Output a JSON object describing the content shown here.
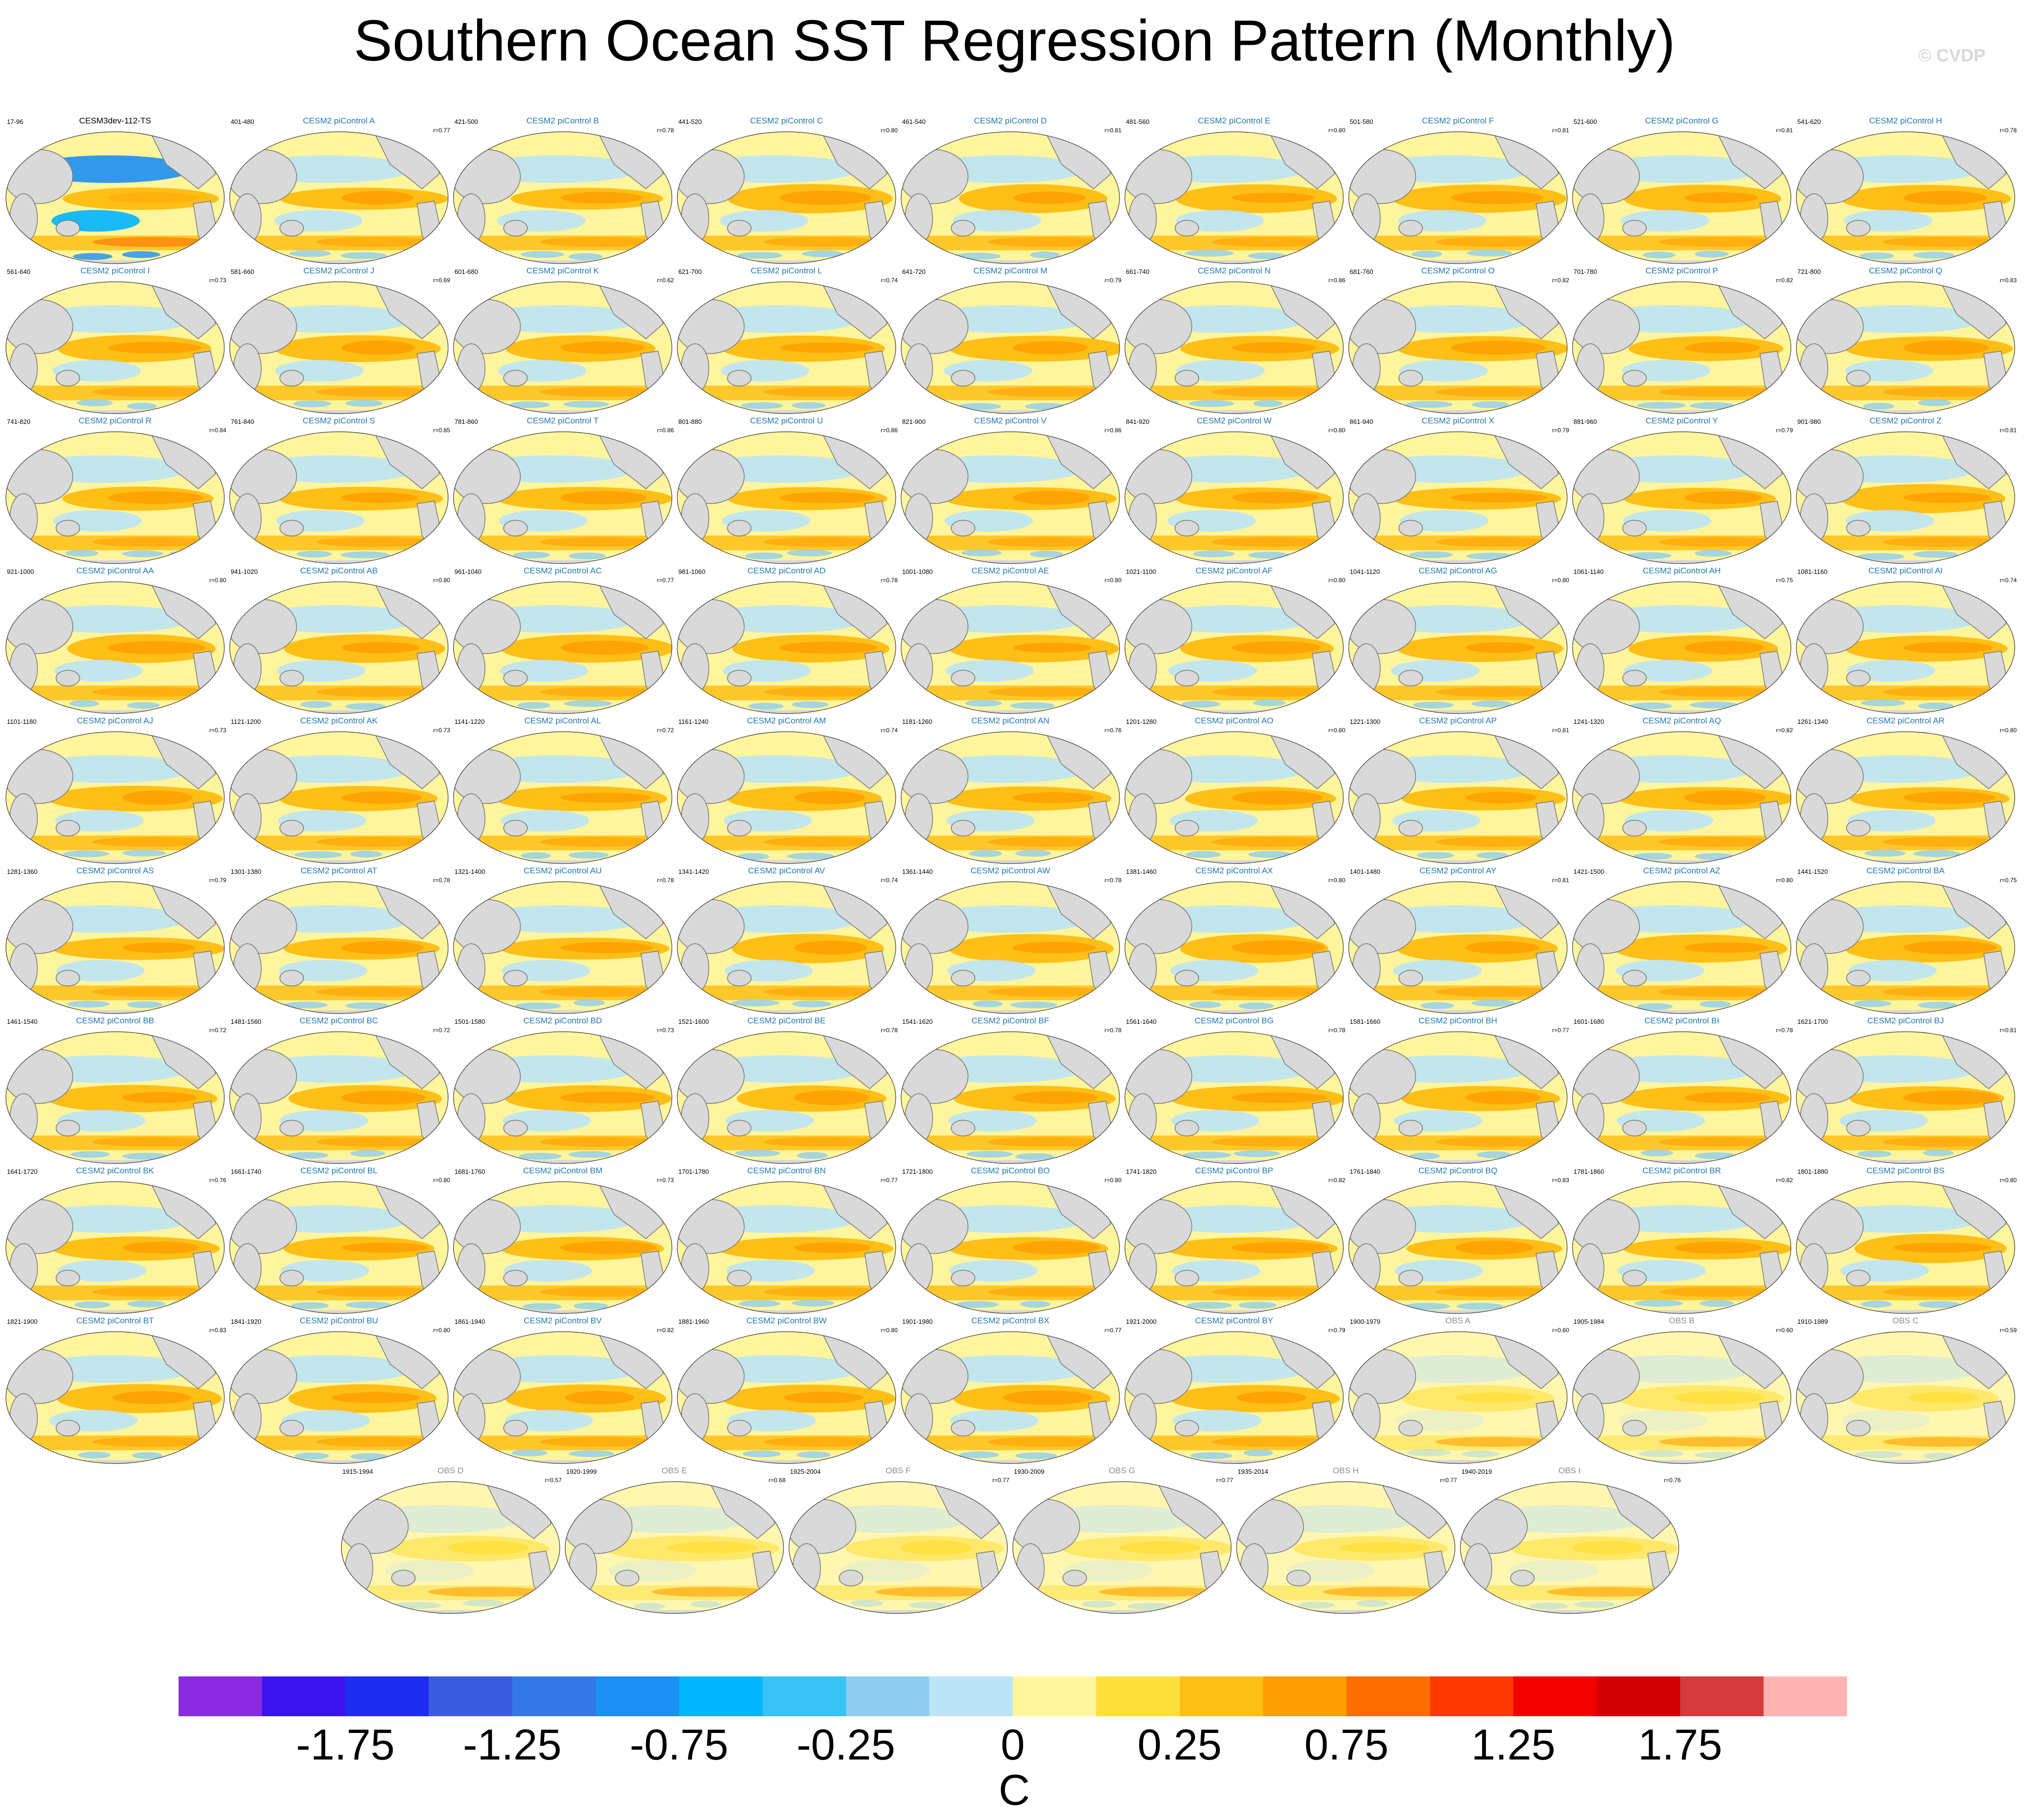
{
  "title": "Southern Ocean SST Regression Pattern (Monthly)",
  "copyright": "© CVDP",
  "colors": {
    "model_title": "#1f78b4",
    "obs_title": "#8e8e8e",
    "land": "#d9d9d9",
    "palette": [
      "#8a2be2",
      "#3a15f2",
      "#1e2df0",
      "#3c5ce0",
      "#3478e8",
      "#1c8ff3",
      "#00b4ff",
      "#38c3f7",
      "#8ecdee",
      "#bde4f6",
      "#fff59d",
      "#ffdf3a",
      "#ffbf16",
      "#ff9e00",
      "#ff6e00",
      "#ff3a00",
      "#f40000",
      "#d40000",
      "#d63b3b",
      "#ffb3b3"
    ]
  },
  "chart_data": {
    "type": "contour-map-panels",
    "title": "Southern Ocean SST Regression Pattern (Monthly)",
    "units": "C",
    "colorbar": {
      "levels": [
        -2.25,
        -2.0,
        -1.75,
        -1.5,
        -1.25,
        -1.0,
        -0.75,
        -0.5,
        -0.25,
        -0.1,
        0,
        0.1,
        0.25,
        0.5,
        0.75,
        1.0,
        1.25,
        1.5,
        1.75,
        2.0,
        2.25
      ],
      "tick_labels": [
        "-1.75",
        "-1.25",
        "-0.75",
        "-0.25",
        "0",
        "0.25",
        "0.75",
        "1.25",
        "1.75"
      ],
      "tick_values": [
        -1.75,
        -1.25,
        -0.75,
        -0.25,
        0,
        0.25,
        0.75,
        1.25,
        1.75
      ]
    },
    "panels": [
      {
        "title": "CESM3dev-112-TS",
        "years": "17-96",
        "r": "",
        "kind": "ref"
      },
      {
        "title": "CESM2 piControl A",
        "years": "401-480",
        "r": "r=0.77",
        "kind": "model"
      },
      {
        "title": "CESM2 piControl B",
        "years": "421-500",
        "r": "r=0.78",
        "kind": "model"
      },
      {
        "title": "CESM2 piControl C",
        "years": "441-520",
        "r": "r=0.80",
        "kind": "model"
      },
      {
        "title": "CESM2 piControl D",
        "years": "461-540",
        "r": "r=0.81",
        "kind": "model"
      },
      {
        "title": "CESM2 piControl E",
        "years": "481-560",
        "r": "r=0.80",
        "kind": "model"
      },
      {
        "title": "CESM2 piControl F",
        "years": "501-580",
        "r": "r=0.81",
        "kind": "model"
      },
      {
        "title": "CESM2 piControl G",
        "years": "521-600",
        "r": "r=0.81",
        "kind": "model"
      },
      {
        "title": "CESM2 piControl H",
        "years": "541-620",
        "r": "r=0.78",
        "kind": "model"
      },
      {
        "title": "CESM2 piControl I",
        "years": "561-640",
        "r": "r=0.73",
        "kind": "model"
      },
      {
        "title": "CESM2 piControl J",
        "years": "581-660",
        "r": "r=0.69",
        "kind": "model"
      },
      {
        "title": "CESM2 piControl K",
        "years": "601-680",
        "r": "r=0.62",
        "kind": "model"
      },
      {
        "title": "CESM2 piControl L",
        "years": "621-700",
        "r": "r=0.74",
        "kind": "model"
      },
      {
        "title": "CESM2 piControl M",
        "years": "641-720",
        "r": "r=0.79",
        "kind": "model"
      },
      {
        "title": "CESM2 piControl N",
        "years": "661-740",
        "r": "r=0.86",
        "kind": "model"
      },
      {
        "title": "CESM2 piControl O",
        "years": "681-760",
        "r": "r=0.82",
        "kind": "model"
      },
      {
        "title": "CESM2 piControl P",
        "years": "701-780",
        "r": "r=0.82",
        "kind": "model"
      },
      {
        "title": "CESM2 piControl Q",
        "years": "721-800",
        "r": "r=0.83",
        "kind": "model"
      },
      {
        "title": "CESM2 piControl R",
        "years": "741-820",
        "r": "r=0.84",
        "kind": "model"
      },
      {
        "title": "CESM2 piControl S",
        "years": "761-840",
        "r": "r=0.85",
        "kind": "model"
      },
      {
        "title": "CESM2 piControl T",
        "years": "781-860",
        "r": "r=0.86",
        "kind": "model"
      },
      {
        "title": "CESM2 piControl U",
        "years": "801-880",
        "r": "r=0.86",
        "kind": "model"
      },
      {
        "title": "CESM2 piControl V",
        "years": "821-900",
        "r": "r=0.86",
        "kind": "model"
      },
      {
        "title": "CESM2 piControl W",
        "years": "841-920",
        "r": "r=0.80",
        "kind": "model"
      },
      {
        "title": "CESM2 piControl X",
        "years": "861-940",
        "r": "r=0.79",
        "kind": "model"
      },
      {
        "title": "CESM2 piControl Y",
        "years": "881-960",
        "r": "r=0.79",
        "kind": "model"
      },
      {
        "title": "CESM2 piControl Z",
        "years": "901-980",
        "r": "r=0.81",
        "kind": "model"
      },
      {
        "title": "CESM2 piControl AA",
        "years": "921-1000",
        "r": "r=0.80",
        "kind": "model"
      },
      {
        "title": "CESM2 piControl AB",
        "years": "941-1020",
        "r": "r=0.80",
        "kind": "model"
      },
      {
        "title": "CESM2 piControl AC",
        "years": "961-1040",
        "r": "r=0.77",
        "kind": "model"
      },
      {
        "title": "CESM2 piControl AD",
        "years": "981-1060",
        "r": "r=0.78",
        "kind": "model"
      },
      {
        "title": "CESM2 piControl AE",
        "years": "1001-1080",
        "r": "r=0.80",
        "kind": "model"
      },
      {
        "title": "CESM2 piControl AF",
        "years": "1021-1100",
        "r": "r=0.80",
        "kind": "model"
      },
      {
        "title": "CESM2 piControl AG",
        "years": "1041-1120",
        "r": "r=0.80",
        "kind": "model"
      },
      {
        "title": "CESM2 piControl AH",
        "years": "1061-1140",
        "r": "r=0.75",
        "kind": "model"
      },
      {
        "title": "CESM2 piControl AI",
        "years": "1081-1160",
        "r": "r=0.74",
        "kind": "model"
      },
      {
        "title": "CESM2 piControl AJ",
        "years": "1101-1180",
        "r": "r=0.73",
        "kind": "model"
      },
      {
        "title": "CESM2 piControl AK",
        "years": "1121-1200",
        "r": "r=0.73",
        "kind": "model"
      },
      {
        "title": "CESM2 piControl AL",
        "years": "1141-1220",
        "r": "r=0.72",
        "kind": "model"
      },
      {
        "title": "CESM2 piControl AM",
        "years": "1161-1240",
        "r": "r=0.74",
        "kind": "model"
      },
      {
        "title": "CESM2 piControl AN",
        "years": "1181-1260",
        "r": "r=0.76",
        "kind": "model"
      },
      {
        "title": "CESM2 piControl AO",
        "years": "1201-1280",
        "r": "r=0.80",
        "kind": "model"
      },
      {
        "title": "CESM2 piControl AP",
        "years": "1221-1300",
        "r": "r=0.81",
        "kind": "model"
      },
      {
        "title": "CESM2 piControl AQ",
        "years": "1241-1320",
        "r": "r=0.82",
        "kind": "model"
      },
      {
        "title": "CESM2 piControl AR",
        "years": "1261-1340",
        "r": "r=0.80",
        "kind": "model"
      },
      {
        "title": "CESM2 piControl AS",
        "years": "1281-1360",
        "r": "r=0.79",
        "kind": "model"
      },
      {
        "title": "CESM2 piControl AT",
        "years": "1301-1380",
        "r": "r=0.78",
        "kind": "model"
      },
      {
        "title": "CESM2 piControl AU",
        "years": "1321-1400",
        "r": "r=0.78",
        "kind": "model"
      },
      {
        "title": "CESM2 piControl AV",
        "years": "1341-1420",
        "r": "r=0.74",
        "kind": "model"
      },
      {
        "title": "CESM2 piControl AW",
        "years": "1361-1440",
        "r": "r=0.78",
        "kind": "model"
      },
      {
        "title": "CESM2 piControl AX",
        "years": "1381-1460",
        "r": "r=0.80",
        "kind": "model"
      },
      {
        "title": "CESM2 piControl AY",
        "years": "1401-1480",
        "r": "r=0.81",
        "kind": "model"
      },
      {
        "title": "CESM2 piControl AZ",
        "years": "1421-1500",
        "r": "r=0.80",
        "kind": "model"
      },
      {
        "title": "CESM2 piControl BA",
        "years": "1441-1520",
        "r": "r=0.75",
        "kind": "model"
      },
      {
        "title": "CESM2 piControl BB",
        "years": "1461-1540",
        "r": "r=0.72",
        "kind": "model"
      },
      {
        "title": "CESM2 piControl BC",
        "years": "1481-1560",
        "r": "r=0.72",
        "kind": "model"
      },
      {
        "title": "CESM2 piControl BD",
        "years": "1501-1580",
        "r": "r=0.73",
        "kind": "model"
      },
      {
        "title": "CESM2 piControl BE",
        "years": "1521-1600",
        "r": "r=0.78",
        "kind": "model"
      },
      {
        "title": "CESM2 piControl BF",
        "years": "1541-1620",
        "r": "r=0.78",
        "kind": "model"
      },
      {
        "title": "CESM2 piControl BG",
        "years": "1561-1640",
        "r": "r=0.78",
        "kind": "model"
      },
      {
        "title": "CESM2 piControl BH",
        "years": "1581-1660",
        "r": "r=0.77",
        "kind": "model"
      },
      {
        "title": "CESM2 piControl BI",
        "years": "1601-1680",
        "r": "r=0.78",
        "kind": "model"
      },
      {
        "title": "CESM2 piControl BJ",
        "years": "1621-1700",
        "r": "r=0.81",
        "kind": "model"
      },
      {
        "title": "CESM2 piControl BK",
        "years": "1641-1720",
        "r": "r=0.76",
        "kind": "model"
      },
      {
        "title": "CESM2 piControl BL",
        "years": "1661-1740",
        "r": "r=0.80",
        "kind": "model"
      },
      {
        "title": "CESM2 piControl BM",
        "years": "1681-1760",
        "r": "r=0.73",
        "kind": "model"
      },
      {
        "title": "CESM2 piControl BN",
        "years": "1701-1780",
        "r": "r=0.77",
        "kind": "model"
      },
      {
        "title": "CESM2 piControl BO",
        "years": "1721-1800",
        "r": "r=0.80",
        "kind": "model"
      },
      {
        "title": "CESM2 piControl BP",
        "years": "1741-1820",
        "r": "r=0.82",
        "kind": "model"
      },
      {
        "title": "CESM2 piControl BQ",
        "years": "1761-1840",
        "r": "r=0.83",
        "kind": "model"
      },
      {
        "title": "CESM2 piControl BR",
        "years": "1781-1860",
        "r": "r=0.82",
        "kind": "model"
      },
      {
        "title": "CESM2 piControl BS",
        "years": "1801-1880",
        "r": "r=0.80",
        "kind": "model"
      },
      {
        "title": "CESM2 piControl BT",
        "years": "1821-1900",
        "r": "r=0.83",
        "kind": "model"
      },
      {
        "title": "CESM2 piControl BU",
        "years": "1841-1920",
        "r": "r=0.80",
        "kind": "model"
      },
      {
        "title": "CESM2 piControl BV",
        "years": "1861-1940",
        "r": "r=0.82",
        "kind": "model"
      },
      {
        "title": "CESM2 piControl BW",
        "years": "1881-1960",
        "r": "r=0.80",
        "kind": "model"
      },
      {
        "title": "CESM2 piControl BX",
        "years": "1901-1980",
        "r": "r=0.77",
        "kind": "model"
      },
      {
        "title": "CESM2 piControl BY",
        "years": "1921-2000",
        "r": "r=0.79",
        "kind": "model"
      },
      {
        "title": "OBS A",
        "years": "1900-1979",
        "r": "r=0.60",
        "kind": "obs"
      },
      {
        "title": "OBS B",
        "years": "1905-1984",
        "r": "r=0.60",
        "kind": "obs"
      },
      {
        "title": "OBS C",
        "years": "1910-1989",
        "r": "r=0.59",
        "kind": "obs"
      },
      {
        "title": "OBS D",
        "years": "1915-1994",
        "r": "r=0.57",
        "kind": "obs"
      },
      {
        "title": "OBS E",
        "years": "1920-1999",
        "r": "r=0.68",
        "kind": "obs"
      },
      {
        "title": "OBS F",
        "years": "1925-2004",
        "r": "r=0.77",
        "kind": "obs"
      },
      {
        "title": "OBS G",
        "years": "1930-2009",
        "r": "r=0.77",
        "kind": "obs"
      },
      {
        "title": "OBS H",
        "years": "1935-2014",
        "r": "r=0.77",
        "kind": "obs"
      },
      {
        "title": "OBS I",
        "years": "1940-2019",
        "r": "r=0.76",
        "kind": "obs"
      }
    ]
  }
}
